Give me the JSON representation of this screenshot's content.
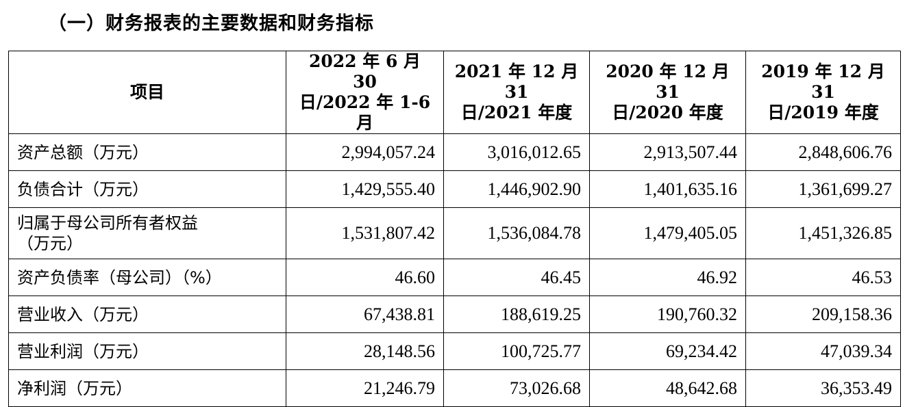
{
  "heading": "（一）财务报表的主要数据和财务指标",
  "table": {
    "header": {
      "item": "项目",
      "cols": [
        {
          "line1": "2022 年 6 月 30",
          "line2": "日/2022 年 1-6 月"
        },
        {
          "line1": "2021 年 12 月 31",
          "line2": "日/2021 年度"
        },
        {
          "line1": "2020 年 12 月 31",
          "line2": "日/2020 年度"
        },
        {
          "line1": "2019 年 12 月 31",
          "line2": "日/2019 年度"
        }
      ]
    },
    "rows": [
      {
        "label": "资产总额（万元）",
        "values": [
          "2,994,057.24",
          "3,016,012.65",
          "2,913,507.44",
          "2,848,606.76"
        ]
      },
      {
        "label": "负债合计（万元）",
        "values": [
          "1,429,555.40",
          "1,446,902.90",
          "1,401,635.16",
          "1,361,699.27"
        ]
      },
      {
        "label": "归属于母公司所有者权益（万元）",
        "label_line1": "归属于母公司所有者权益",
        "label_line2": "（万元）",
        "values": [
          "1,531,807.42",
          "1,536,084.78",
          "1,479,405.05",
          "1,451,326.85"
        ]
      },
      {
        "label": "资产负债率（母公司）（%）",
        "values": [
          "46.60",
          "46.45",
          "46.92",
          "46.53"
        ]
      },
      {
        "label": "营业收入（万元）",
        "values": [
          "67,438.81",
          "188,619.25",
          "190,760.32",
          "209,158.36"
        ]
      },
      {
        "label": "营业利润（万元）",
        "values": [
          "28,148.56",
          "100,725.77",
          "69,234.42",
          "47,039.34"
        ]
      },
      {
        "label": "净利润（万元）",
        "values": [
          "21,246.79",
          "73,026.68",
          "48,642.68",
          "36,353.49"
        ]
      }
    ]
  }
}
